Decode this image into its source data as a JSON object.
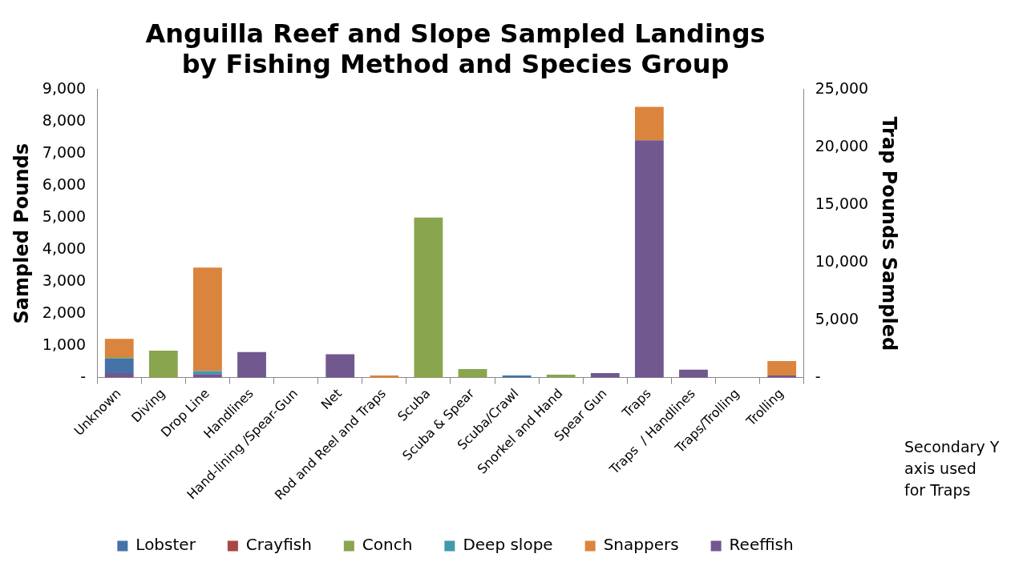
{
  "chart_data": {
    "type": "bar",
    "title": "Anguilla Reef and Slope Sampled Landings\nby Fishing Method and Species Group",
    "ylabel": "Sampled Pounds",
    "y2label": "Trap Pounds Sampled",
    "categories": [
      "Unknown",
      "Diving",
      "Drop Line",
      "Handlines",
      "Hand-lining /Spear-Gun",
      "Net",
      "Rod and Reel and Traps",
      "Scuba",
      "Scuba & Spear",
      "Scuba/Crawl",
      "Snorkel and Hand",
      "Spear Gun",
      "Traps",
      "Traps  / Handlines",
      "Traps/Trolling",
      "Trolling"
    ],
    "stacked": true,
    "series": [
      {
        "name": "Reeffish",
        "color": "#71588f",
        "values": [
          140,
          0,
          110,
          800,
          0,
          730,
          0,
          0,
          0,
          0,
          0,
          140,
          null,
          250,
          0,
          70
        ]
      },
      {
        "name": "Lobster",
        "color": "#4572a7",
        "values": [
          460,
          0,
          0,
          0,
          0,
          0,
          0,
          0,
          0,
          70,
          0,
          0,
          null,
          0,
          0,
          0
        ]
      },
      {
        "name": "Crayfish",
        "color": "#aa4643",
        "values": [
          0,
          0,
          0,
          0,
          0,
          0,
          0,
          0,
          0,
          0,
          0,
          0,
          null,
          0,
          0,
          0
        ]
      },
      {
        "name": "Conch",
        "color": "#89a54e",
        "values": [
          40,
          840,
          0,
          0,
          0,
          0,
          0,
          5000,
          270,
          0,
          90,
          0,
          null,
          0,
          0,
          0
        ]
      },
      {
        "name": "Deep slope",
        "color": "#4198af",
        "values": [
          0,
          0,
          95,
          0,
          0,
          0,
          0,
          0,
          0,
          0,
          0,
          0,
          null,
          0,
          0,
          0
        ]
      },
      {
        "name": "Snappers",
        "color": "#db843d",
        "values": [
          570,
          0,
          3230,
          0,
          0,
          0,
          70,
          0,
          0,
          0,
          0,
          0,
          null,
          0,
          0,
          450
        ]
      },
      {
        "color": "#71588f",
        "axis": "y2",
        "values": [
          null,
          null,
          null,
          null,
          null,
          null,
          null,
          null,
          null,
          null,
          null,
          null,
          20600,
          null,
          null,
          null
        ]
      },
      {
        "color": "#db843d",
        "axis": "y2",
        "values": [
          null,
          null,
          null,
          null,
          null,
          null,
          null,
          null,
          null,
          null,
          null,
          null,
          2900,
          null,
          null,
          null
        ]
      }
    ],
    "ylim": [
      0,
      9000
    ],
    "yticks": [
      {
        "value": 0,
        "label": "-"
      },
      {
        "value": 1000,
        "label": "1,000"
      },
      {
        "value": 2000,
        "label": "2,000"
      },
      {
        "value": 3000,
        "label": "3,000"
      },
      {
        "value": 4000,
        "label": "4,000"
      },
      {
        "value": 5000,
        "label": "5,000"
      },
      {
        "value": 6000,
        "label": "6,000"
      },
      {
        "value": 7000,
        "label": "7,000"
      },
      {
        "value": 8000,
        "label": "8,000"
      },
      {
        "value": 9000,
        "label": "9,000"
      }
    ],
    "y2lim": [
      0,
      25000
    ],
    "y2ticks": [
      {
        "value": 0,
        "label": "-"
      },
      {
        "value": 5000,
        "label": "5,000"
      },
      {
        "value": 10000,
        "label": "10,000"
      },
      {
        "value": 15000,
        "label": "15,000"
      },
      {
        "value": 20000,
        "label": "20,000"
      },
      {
        "value": 25000,
        "label": "25,000"
      }
    ],
    "legend": "bottom",
    "grid": false,
    "annotations": [
      "Secondary Y axis used for Traps"
    ]
  }
}
